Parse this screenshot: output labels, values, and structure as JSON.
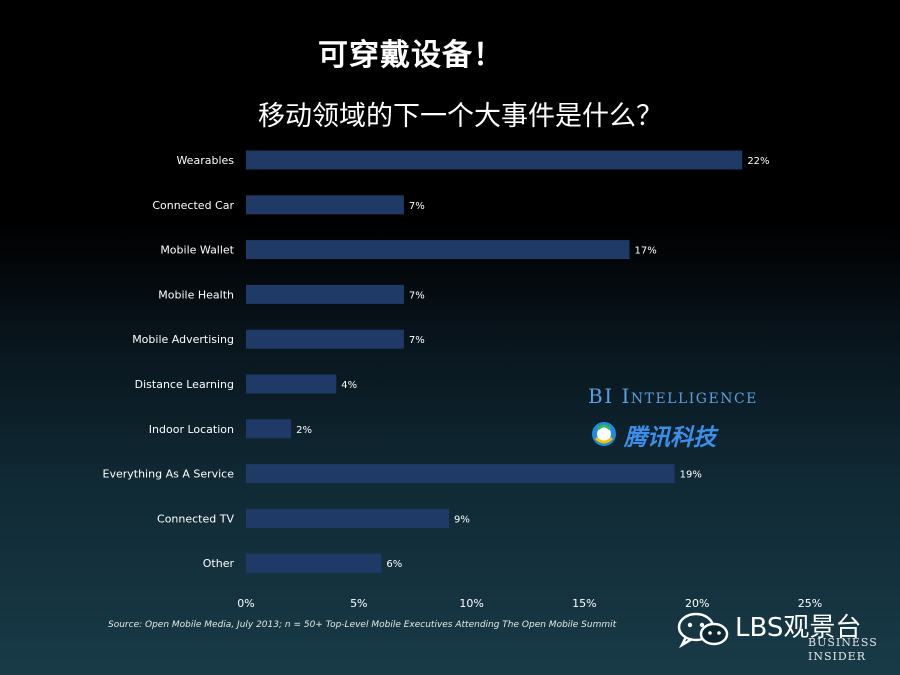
{
  "title": "可穿戴设备！",
  "chart_data": {
    "type": "bar",
    "orientation": "horizontal",
    "title": "移动领域的下一个大事件是什么？",
    "categories": [
      "Wearables",
      "Connected Car",
      "Mobile Wallet",
      "Mobile Health",
      "Mobile Advertising",
      "Distance Learning",
      "Indoor Location",
      "Everything As A Service",
      "Connected TV",
      "Other"
    ],
    "values": [
      22,
      7,
      17,
      7,
      7,
      4,
      2,
      19,
      9,
      6
    ],
    "value_labels": [
      "22%",
      "7%",
      "17%",
      "7%",
      "7%",
      "4%",
      "2%",
      "19%",
      "9%",
      "6%"
    ],
    "xlim": [
      0,
      25
    ],
    "xticks": [
      0,
      5,
      10,
      15,
      20,
      25
    ],
    "xtick_labels": [
      "0%",
      "5%",
      "10%",
      "15%",
      "20%",
      "25%"
    ],
    "xlabel": "",
    "ylabel": "",
    "grid": false,
    "bar_color": "#1f3a66"
  },
  "source": "Source: Open Mobile Media, July 2013; n = 50+ Top-Level Mobile Executives Attending The Open Mobile Summit",
  "watermarks": {
    "bi_intelligence": "BI Intelligence",
    "tencent_tech": "腾讯科技",
    "wechat_account": "LBS观景台",
    "business_insider_line1": "BUSINESS",
    "business_insider_line2": "INSIDER"
  },
  "icons": {
    "tencent": "tencent-logo-icon",
    "wechat": "wechat-icon"
  }
}
